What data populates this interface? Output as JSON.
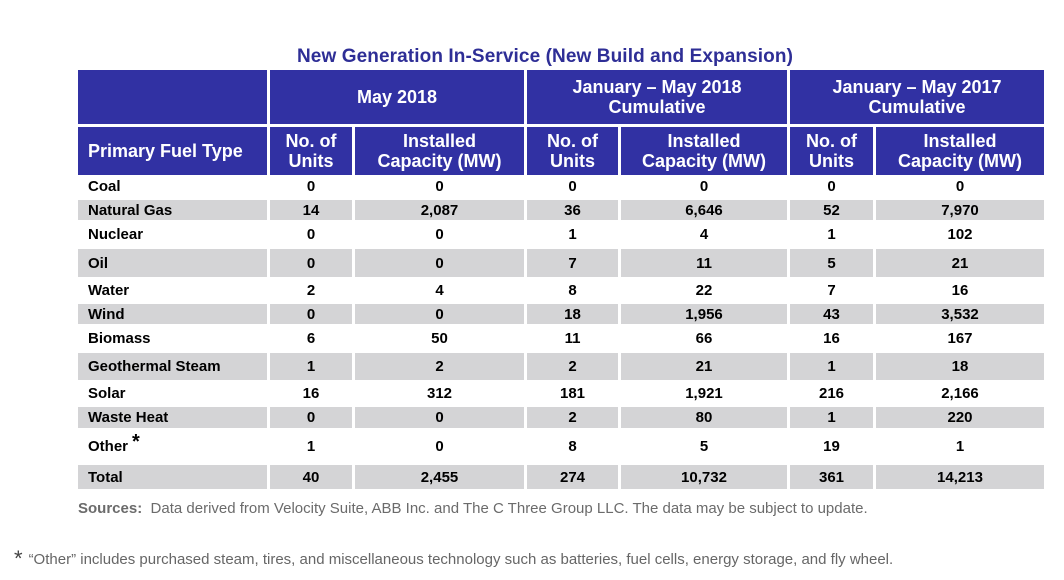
{
  "title": "New Generation In-Service (New Build and Expansion)",
  "header": {
    "group1": "May 2018",
    "group2_line1": "January – May 2018",
    "group2_line2": "Cumulative",
    "group3_line1": "January – May 2017",
    "group3_line2": "Cumulative",
    "primary_fuel_type": "Primary Fuel Type",
    "units_line1": "No. of",
    "units_line2": "Units",
    "capacity_line1": "Installed",
    "capacity_line2": "Capacity (MW)"
  },
  "rows": [
    {
      "label": "Coal",
      "values": [
        "0",
        "0",
        "0",
        "0",
        "0",
        "0"
      ]
    },
    {
      "label": "Natural Gas",
      "values": [
        "14",
        "2,087",
        "36",
        "6,646",
        "52",
        "7,970"
      ]
    },
    {
      "label": "Nuclear",
      "values": [
        "0",
        "0",
        "1",
        "4",
        "1",
        "102"
      ]
    },
    {
      "label": "Oil",
      "values": [
        "0",
        "0",
        "7",
        "11",
        "5",
        "21"
      ]
    },
    {
      "label": "Water",
      "values": [
        "2",
        "4",
        "8",
        "22",
        "7",
        "16"
      ]
    },
    {
      "label": "Wind",
      "values": [
        "0",
        "0",
        "18",
        "1,956",
        "43",
        "3,532"
      ]
    },
    {
      "label": "Biomass",
      "values": [
        "6",
        "50",
        "11",
        "66",
        "16",
        "167"
      ]
    },
    {
      "label": "Geothermal Steam",
      "values": [
        "1",
        "2",
        "2",
        "21",
        "1",
        "18"
      ]
    },
    {
      "label": "Solar",
      "values": [
        "16",
        "312",
        "181",
        "1,921",
        "216",
        "2,166"
      ]
    },
    {
      "label": "Waste Heat",
      "values": [
        "0",
        "0",
        "2",
        "80",
        "1",
        "220"
      ]
    },
    {
      "label": "Other",
      "values": [
        "1",
        "0",
        "8",
        "5",
        "19",
        "1"
      ],
      "marker": "*"
    }
  ],
  "total": {
    "label": "Total",
    "values": [
      "40",
      "2,455",
      "274",
      "10,732",
      "361",
      "14,213"
    ]
  },
  "sources_label": "Sources:",
  "sources_text": "Data derived from Velocity Suite, ABB Inc. and The C Three Group LLC.  The data may be subject to update.",
  "footnote_marker": "*",
  "footnote_text": "“Other” includes purchased steam, tires, and miscellaneous technology such as batteries, fuel cells, energy storage, and fly wheel.",
  "colors": {
    "header_bg": "#3131a3",
    "title": "#2e2e96",
    "band": "#d4d4d6"
  }
}
